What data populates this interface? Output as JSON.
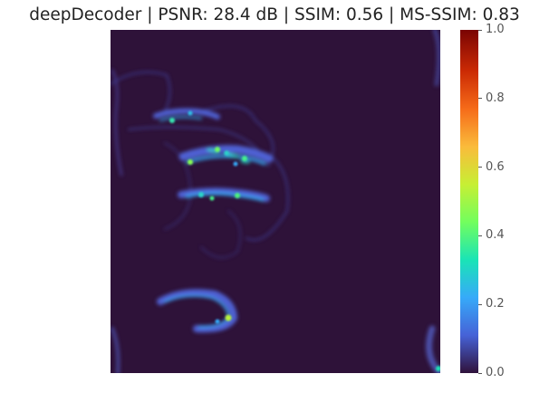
{
  "chart_data": {
    "type": "heatmap",
    "title": "deepDecoder | PSNR: 28.4 dB | SSIM: 0.56 | MS-SSIM: 0.83",
    "colormap": "turbo",
    "colorbar": {
      "range": [
        0.0,
        1.0
      ],
      "ticks": [
        "0.0",
        "0.2",
        "0.4",
        "0.6",
        "0.8",
        "1.0"
      ]
    },
    "axes_visible": false
  },
  "colors": {
    "background": "#2e1239",
    "colormap_stops": [
      "#30123b",
      "#4662d7",
      "#36aaf9",
      "#1ae4b6",
      "#72fe5e",
      "#c7ef34",
      "#fabb3b",
      "#f66b19",
      "#cb2a04",
      "#7a0403"
    ]
  }
}
